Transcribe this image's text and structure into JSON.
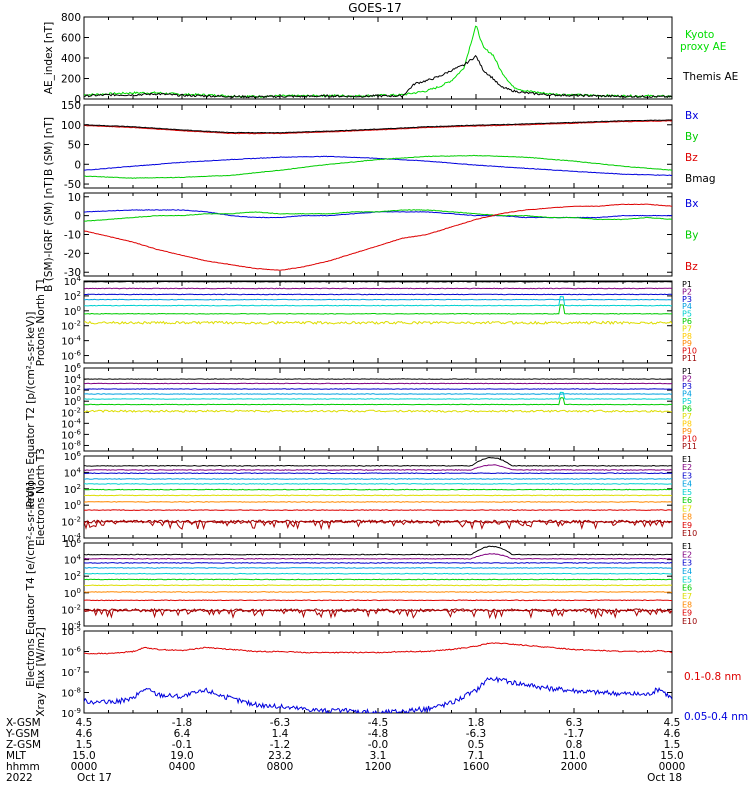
{
  "title": "GOES-17",
  "footer": {
    "row_labels": [
      "X-GSM",
      "Y-GSM",
      "Z-GSM",
      "MLT",
      "hhmm",
      "2022"
    ],
    "ticks": [
      {
        "x_gsm": "4.5",
        "y_gsm": "4.6",
        "z_gsm": "1.5",
        "mlt": "15.0",
        "hhmm": "0000",
        "date": "Oct 17"
      },
      {
        "x_gsm": "-1.8",
        "y_gsm": "6.4",
        "z_gsm": "-0.1",
        "mlt": "19.0",
        "hhmm": "0400",
        "date": ""
      },
      {
        "x_gsm": "-6.3",
        "y_gsm": "1.4",
        "z_gsm": "-1.2",
        "mlt": "23.2",
        "hhmm": "0800",
        "date": ""
      },
      {
        "x_gsm": "-4.5",
        "y_gsm": "-4.8",
        "z_gsm": "-0.0",
        "mlt": "3.1",
        "hhmm": "1200",
        "date": ""
      },
      {
        "x_gsm": "1.8",
        "y_gsm": "-6.3",
        "z_gsm": "0.5",
        "mlt": "7.1",
        "hhmm": "1600",
        "date": ""
      },
      {
        "x_gsm": "6.3",
        "y_gsm": "-1.7",
        "z_gsm": "0.8",
        "mlt": "11.0",
        "hhmm": "2000",
        "date": ""
      },
      {
        "x_gsm": "4.5",
        "y_gsm": "4.6",
        "z_gsm": "1.5",
        "mlt": "15.0",
        "hhmm": "0000",
        "date": "Oct 18"
      }
    ]
  },
  "chart_data": [
    {
      "type": "line",
      "ylabel": "AE_index [nT]",
      "ylim": [
        0,
        800
      ],
      "yticks": [
        "0",
        "200",
        "400",
        "600",
        "800"
      ],
      "x_hours": [
        0,
        1,
        2,
        3,
        4,
        5,
        6,
        7,
        8,
        9,
        10,
        11,
        12,
        13,
        13.5,
        14,
        14.5,
        15,
        15.5,
        16,
        16.3,
        16.7,
        17,
        17.5,
        18,
        19,
        20,
        21,
        22,
        23,
        24
      ],
      "series": [
        {
          "name": "Kyoto proxy AE",
          "color": "#00dd00",
          "values": [
            40,
            50,
            60,
            60,
            45,
            40,
            30,
            25,
            30,
            30,
            35,
            30,
            35,
            40,
            60,
            80,
            120,
            180,
            300,
            720,
            500,
            430,
            280,
            120,
            80,
            50,
            40,
            35,
            30,
            30,
            25
          ]
        },
        {
          "name": "Themis AE",
          "color": "#000000",
          "values": [
            30,
            40,
            40,
            50,
            35,
            30,
            25,
            20,
            25,
            25,
            30,
            25,
            30,
            30,
            150,
            180,
            220,
            280,
            330,
            420,
            280,
            200,
            120,
            80,
            60,
            40,
            35,
            30,
            25,
            25,
            20
          ]
        }
      ]
    },
    {
      "type": "line",
      "ylabel": "B (SM) [nT]",
      "ylim": [
        -60,
        150
      ],
      "yticks": [
        "-50",
        "0",
        "50",
        "100",
        "150"
      ],
      "x_hours": [
        0,
        2,
        4,
        6,
        8,
        10,
        12,
        14,
        16,
        18,
        20,
        22,
        24
      ],
      "series": [
        {
          "name": "Bx",
          "color": "#0000dd",
          "values": [
            -15,
            -5,
            5,
            12,
            18,
            20,
            15,
            8,
            -2,
            -10,
            -18,
            -25,
            -28
          ]
        },
        {
          "name": "By",
          "color": "#00cc00",
          "values": [
            -30,
            -35,
            -33,
            -28,
            -15,
            0,
            12,
            20,
            22,
            18,
            8,
            -5,
            -15
          ]
        },
        {
          "name": "Bz",
          "color": "#dd0000",
          "values": [
            98,
            93,
            85,
            78,
            78,
            82,
            87,
            93,
            97,
            100,
            104,
            108,
            110
          ]
        },
        {
          "name": "Bmag",
          "color": "#000000",
          "values": [
            100,
            95,
            87,
            80,
            80,
            84,
            89,
            95,
            99,
            102,
            106,
            110,
            112
          ]
        }
      ]
    },
    {
      "type": "line",
      "ylabel": "B (SM)-IGRF (SM) [nT]",
      "ylim": [
        -32,
        12
      ],
      "yticks": [
        "-30",
        "-20",
        "-10",
        "0",
        "10"
      ],
      "x_hours": [
        0,
        1,
        2,
        3,
        4,
        5,
        6,
        7,
        8,
        9,
        10,
        11,
        12,
        13,
        14,
        15,
        16,
        17,
        18,
        19,
        20,
        21,
        22,
        23,
        24
      ],
      "series": [
        {
          "name": "Bx",
          "color": "#0000dd",
          "values": [
            2,
            2.5,
            3,
            3,
            3,
            2,
            0,
            -1,
            -1,
            0,
            0,
            1,
            2,
            2,
            2,
            1,
            0,
            0,
            -1,
            -1,
            -1,
            -1,
            0,
            0,
            0
          ]
        },
        {
          "name": "By",
          "color": "#00cc00",
          "values": [
            -3,
            -2,
            -1,
            0,
            0,
            1,
            1,
            2,
            1,
            1,
            1,
            2,
            2,
            3,
            3,
            2,
            1,
            0,
            0,
            -1,
            -1,
            -2,
            -2,
            -1,
            -2
          ]
        },
        {
          "name": "Bz",
          "color": "#dd0000",
          "values": [
            -8,
            -11,
            -14,
            -18,
            -21,
            -24,
            -26,
            -28,
            -29,
            -27,
            -24,
            -20,
            -16,
            -12,
            -10,
            -6,
            -2,
            1,
            3,
            4,
            5,
            5,
            6,
            6,
            5
          ]
        }
      ]
    },
    {
      "type": "line",
      "log": true,
      "ylabel": "Protons North T1",
      "ylim_exp": [
        -7,
        4
      ],
      "ytick_exps": [
        4,
        2,
        0,
        -2,
        -4,
        -6
      ],
      "spike_hour": 19.5,
      "series": [
        {
          "name": "P1",
          "color": "#000000",
          "level": 3.9
        },
        {
          "name": "P2",
          "color": "#800080",
          "level": 3.0
        },
        {
          "name": "P3",
          "color": "#0000cc",
          "level": 2.2
        },
        {
          "name": "P4",
          "color": "#00a0e0",
          "level": 1.5
        },
        {
          "name": "P5",
          "color": "#00d0d0",
          "level": 0.7
        },
        {
          "name": "P6",
          "color": "#00cc00",
          "level": -0.4
        },
        {
          "name": "P7",
          "color": "#dddd00",
          "level": -1.6
        },
        {
          "name": "P8",
          "color": "#ffcc00",
          "level": null
        },
        {
          "name": "P9",
          "color": "#ff8800",
          "level": null
        },
        {
          "name": "P10",
          "color": "#dd0000",
          "level": null
        },
        {
          "name": "P11",
          "color": "#990000",
          "level": null
        }
      ]
    },
    {
      "type": "line",
      "log": true,
      "ylabel": "Protons Equator T2 [p/(cm²-s-sr-keV)]",
      "ylim_exp": [
        -9,
        6
      ],
      "ytick_exps": [
        6,
        4,
        2,
        0,
        -2,
        -4,
        -6,
        -8
      ],
      "spike_hour": 19.5,
      "series": [
        {
          "name": "P1",
          "color": "#000000",
          "level": 4.0
        },
        {
          "name": "P2",
          "color": "#800080",
          "level": 3.2
        },
        {
          "name": "P3",
          "color": "#0000cc",
          "level": 2.2
        },
        {
          "name": "P4",
          "color": "#00a0e0",
          "level": 1.3
        },
        {
          "name": "P5",
          "color": "#00d0d0",
          "level": 0.4
        },
        {
          "name": "P6",
          "color": "#00cc00",
          "level": -0.6
        },
        {
          "name": "P7",
          "color": "#dddd00",
          "level": -1.8
        },
        {
          "name": "P8",
          "color": "#ffcc00",
          "level": null
        },
        {
          "name": "P9",
          "color": "#ff8800",
          "level": null
        },
        {
          "name": "P10",
          "color": "#dd0000",
          "level": null
        },
        {
          "name": "P11",
          "color": "#990000",
          "level": null
        }
      ]
    },
    {
      "type": "line",
      "log": true,
      "ylabel": "Electrons North T3",
      "ylim_exp": [
        -4,
        6
      ],
      "ytick_exps": [
        6,
        4,
        2,
        0,
        -2,
        -4
      ],
      "bump_hours": [
        15.8,
        18.5
      ],
      "series": [
        {
          "name": "E1",
          "color": "#000000",
          "level": 4.8
        },
        {
          "name": "E2",
          "color": "#800080",
          "level": 4.3
        },
        {
          "name": "E3",
          "color": "#0000cc",
          "level": 3.9
        },
        {
          "name": "E4",
          "color": "#00a0e0",
          "level": 3.2
        },
        {
          "name": "E5",
          "color": "#00d0d0",
          "level": 2.6
        },
        {
          "name": "E6",
          "color": "#00cc00",
          "level": 1.9
        },
        {
          "name": "E7",
          "color": "#dddd00",
          "level": 1.2
        },
        {
          "name": "E8",
          "color": "#ff8800",
          "level": 0.4
        },
        {
          "name": "E9",
          "color": "#dd0000",
          "level": -0.6
        },
        {
          "name": "E10",
          "color": "#990000",
          "level": -2.0
        }
      ]
    },
    {
      "type": "line",
      "log": true,
      "ylabel": "Electrons Equator T4 [e/(cm²-s-sr-keV)]",
      "ylim_exp": [
        -4,
        6
      ],
      "ytick_exps": [
        6,
        4,
        2,
        0,
        -2,
        -4
      ],
      "bump_hours": [
        15.8,
        18.5
      ],
      "series": [
        {
          "name": "E1",
          "color": "#000000",
          "level": 4.6
        },
        {
          "name": "E2",
          "color": "#800080",
          "level": 4.1
        },
        {
          "name": "E3",
          "color": "#0000cc",
          "level": 3.6
        },
        {
          "name": "E4",
          "color": "#00a0e0",
          "level": 3.0
        },
        {
          "name": "E5",
          "color": "#00d0d0",
          "level": 2.3
        },
        {
          "name": "E6",
          "color": "#00cc00",
          "level": 1.6
        },
        {
          "name": "E7",
          "color": "#dddd00",
          "level": 0.9
        },
        {
          "name": "E8",
          "color": "#ff8800",
          "level": 0.1
        },
        {
          "name": "E9",
          "color": "#dd0000",
          "level": -0.9
        },
        {
          "name": "E10",
          "color": "#990000",
          "level": -2.1
        }
      ]
    },
    {
      "type": "line",
      "log": true,
      "ylabel": "Xray flux [W/m2]",
      "ylim_exp": [
        -9,
        -5
      ],
      "ytick_exps": [
        -5,
        -6,
        -7,
        -8,
        -9
      ],
      "x_hours": [
        0,
        1,
        2,
        2.5,
        3,
        4,
        5,
        6,
        7,
        8,
        9,
        10,
        11,
        12,
        13,
        14,
        15,
        16,
        16.5,
        17,
        18,
        19,
        20,
        21,
        22,
        23,
        23.5,
        24
      ],
      "series": [
        {
          "name": "0.1-0.8 nm",
          "color": "#dd0000",
          "values": [
            -6.1,
            -6.1,
            -6.0,
            -5.8,
            -5.9,
            -5.95,
            -5.8,
            -5.9,
            -6.0,
            -6.0,
            -6.05,
            -6.05,
            -6.05,
            -6.05,
            -6.0,
            -6.0,
            -5.9,
            -5.75,
            -5.6,
            -5.6,
            -5.7,
            -5.8,
            -5.9,
            -5.95,
            -6.0,
            -6.0,
            -5.95,
            -6.05
          ]
        },
        {
          "name": "0.05-0.4 nm",
          "color": "#0000dd",
          "values": [
            -8.4,
            -8.5,
            -8.3,
            -7.8,
            -8.1,
            -8.2,
            -7.9,
            -8.3,
            -8.6,
            -8.7,
            -8.8,
            -8.9,
            -8.9,
            -9.0,
            -8.9,
            -8.8,
            -8.5,
            -7.9,
            -7.3,
            -7.4,
            -7.6,
            -7.8,
            -7.9,
            -8.0,
            -8.05,
            -8.1,
            -7.8,
            -8.3
          ]
        }
      ]
    }
  ]
}
